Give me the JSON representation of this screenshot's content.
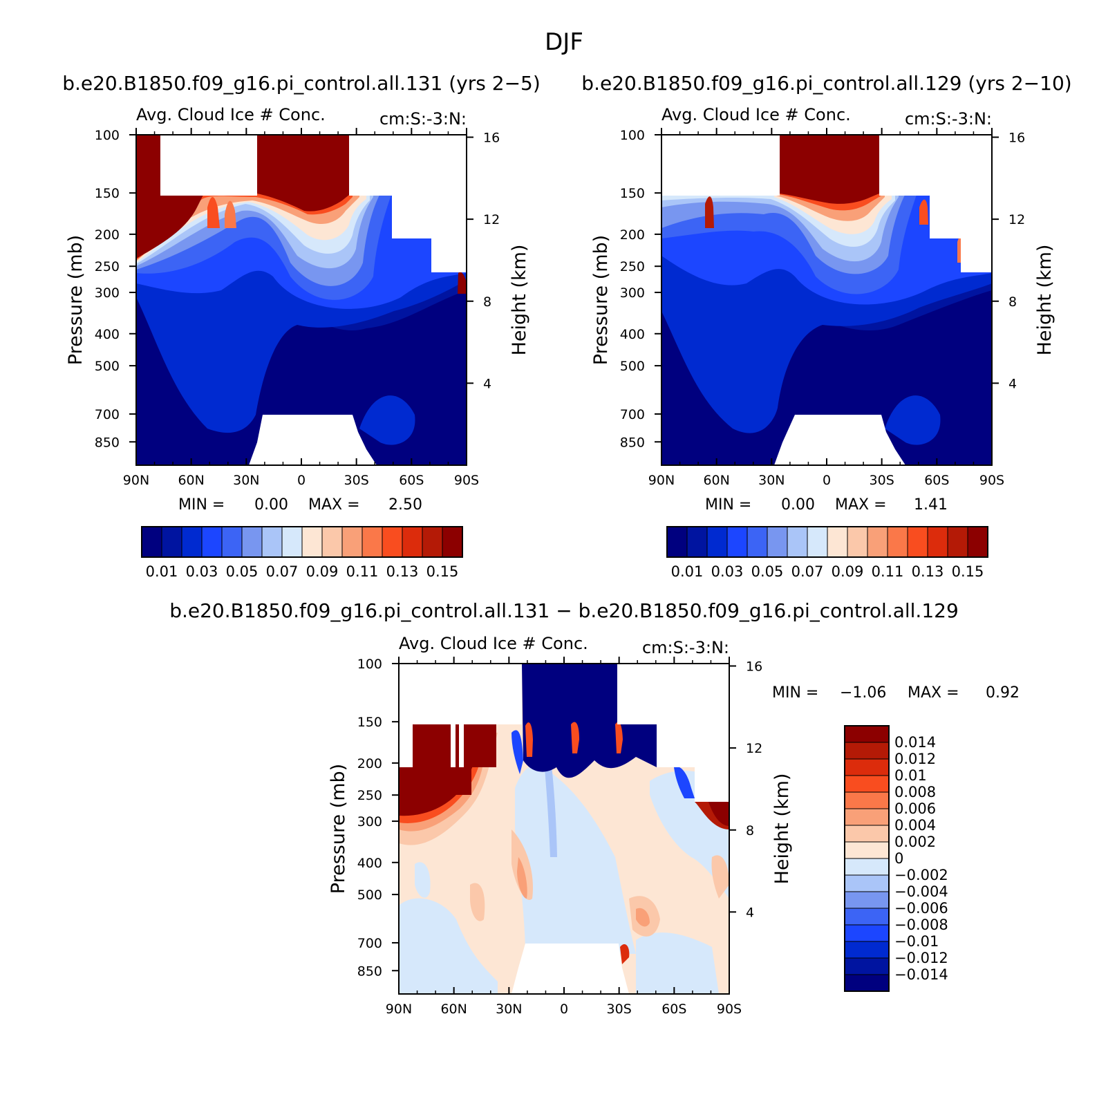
{
  "figure": {
    "title": "DJF",
    "bottom_panel_title": "b.e20.B1850.f09_g16.pi_control.all.131 − b.e20.B1850.f09_g16.pi_control.all.129"
  },
  "chart_data": [
    {
      "type": "heatmap",
      "case_title": "b.e20.B1850.f09_g16.pi_control.all.131 (yrs 2−5)",
      "title": "Avg. Cloud Ice # Conc.",
      "units": "cm:S:-3:N:",
      "xlabel": "",
      "ylabel": "Pressure (mb)",
      "ylabel_right": "Height (km)",
      "x_tick_labels": [
        "90N",
        "60N",
        "30N",
        "0",
        "30S",
        "60S",
        "90S"
      ],
      "x_tick_values": [
        90,
        60,
        30,
        0,
        -30,
        -60,
        -90
      ],
      "y_tick_values": [
        100,
        150,
        200,
        250,
        300,
        400,
        500,
        700,
        850
      ],
      "height_ticks": [
        16,
        12,
        8,
        4
      ],
      "ylim": [
        1000,
        100
      ],
      "min_label": "MIN =",
      "min_value": "0.00",
      "max_label": "MAX =",
      "max_value": "2.50",
      "colorbar_labels": [
        "0.01",
        "0.03",
        "0.05",
        "0.07",
        "0.09",
        "0.11",
        "0.13",
        "0.15"
      ],
      "contour_levels": [
        0.01,
        0.02,
        0.03,
        0.04,
        0.05,
        0.06,
        0.07,
        0.08,
        0.09,
        0.1,
        0.11,
        0.12,
        0.13,
        0.14,
        0.15
      ]
    },
    {
      "type": "heatmap",
      "case_title": "b.e20.B1850.f09_g16.pi_control.all.129 (yrs 2−10)",
      "title": "Avg. Cloud Ice # Conc.",
      "units": "cm:S:-3:N:",
      "xlabel": "",
      "ylabel": "Pressure (mb)",
      "ylabel_right": "Height (km)",
      "x_tick_labels": [
        "90N",
        "60N",
        "30N",
        "0",
        "30S",
        "60S",
        "90S"
      ],
      "x_tick_values": [
        90,
        60,
        30,
        0,
        -30,
        -60,
        -90
      ],
      "y_tick_values": [
        100,
        150,
        200,
        250,
        300,
        400,
        500,
        700,
        850
      ],
      "height_ticks": [
        16,
        12,
        8,
        4
      ],
      "ylim": [
        1000,
        100
      ],
      "min_label": "MIN =",
      "min_value": "0.00",
      "max_label": "MAX =",
      "max_value": "1.41",
      "colorbar_labels": [
        "0.01",
        "0.03",
        "0.05",
        "0.07",
        "0.09",
        "0.11",
        "0.13",
        "0.15"
      ],
      "contour_levels": [
        0.01,
        0.02,
        0.03,
        0.04,
        0.05,
        0.06,
        0.07,
        0.08,
        0.09,
        0.1,
        0.11,
        0.12,
        0.13,
        0.14,
        0.15
      ]
    },
    {
      "type": "heatmap",
      "case_title": "b.e20.B1850.f09_g16.pi_control.all.131 − b.e20.B1850.f09_g16.pi_control.all.129",
      "title": "Avg. Cloud Ice # Conc.",
      "units": "cm:S:-3:N:",
      "xlabel": "",
      "ylabel": "Pressure (mb)",
      "ylabel_right": "Height (km)",
      "x_tick_labels": [
        "90N",
        "60N",
        "30N",
        "0",
        "30S",
        "60S",
        "90S"
      ],
      "x_tick_values": [
        90,
        60,
        30,
        0,
        -30,
        -60,
        -90
      ],
      "y_tick_values": [
        100,
        150,
        200,
        250,
        300,
        400,
        500,
        700,
        850
      ],
      "height_ticks": [
        16,
        12,
        8,
        4
      ],
      "ylim": [
        1000,
        100
      ],
      "min_label": "MIN =",
      "min_value": "−1.06",
      "max_label": "MAX =",
      "max_value": "0.92",
      "colorbar_labels": [
        "0.014",
        "0.012",
        "0.01",
        "0.008",
        "0.006",
        "0.004",
        "0.002",
        "0",
        "−0.002",
        "−0.004",
        "−0.006",
        "−0.008",
        "−0.01",
        "−0.012",
        "−0.014"
      ],
      "contour_levels": [
        0.014,
        0.012,
        0.01,
        0.008,
        0.006,
        0.004,
        0.002,
        0,
        -0.002,
        -0.004,
        -0.006,
        -0.008,
        -0.01,
        -0.012,
        -0.014
      ]
    }
  ],
  "colors": {
    "abs_scale": [
      "#00007f",
      "#0014a0",
      "#002ad0",
      "#1c46ff",
      "#3c64f5",
      "#7896f0",
      "#aac5f8",
      "#d6e8fb",
      "#fde6d4",
      "#fbc8aa",
      "#f9a078",
      "#fa7849",
      "#f94d1f",
      "#dc2c0c",
      "#b41a06",
      "#8c0000"
    ],
    "diff_scale": [
      "#8c0000",
      "#b41a06",
      "#dc2c0c",
      "#f94d1f",
      "#fa7849",
      "#f9a078",
      "#fbc8aa",
      "#fde6d4",
      "#d6e8fb",
      "#aac5f8",
      "#7896f0",
      "#3c64f5",
      "#1c46ff",
      "#002ad0",
      "#0014a0",
      "#00007f"
    ],
    "missing": "#ffffff"
  }
}
